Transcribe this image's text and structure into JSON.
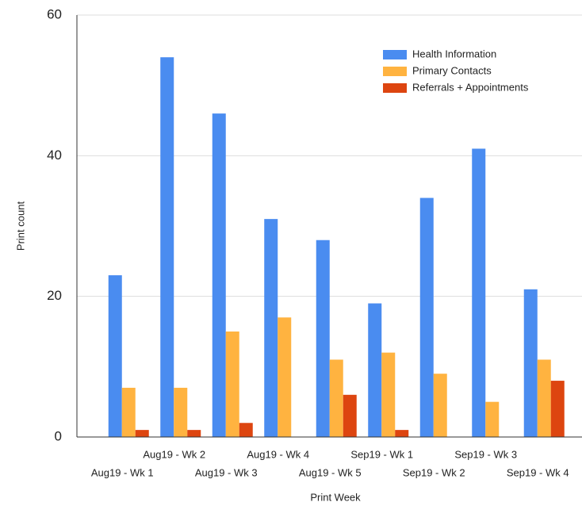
{
  "chart_data": {
    "type": "bar",
    "xlabel": "Print Week",
    "ylabel": "Print count",
    "categories": [
      "Aug19 - Wk 1",
      "Aug19 - Wk 2",
      "Aug19 - Wk 3",
      "Aug19 - Wk 4",
      "Aug19 - Wk 5",
      "Sep19 - Wk 1",
      "Sep19 - Wk 2",
      "Sep19 - Wk 3",
      "Sep19 - Wk 4"
    ],
    "series": [
      {
        "name": "Health Information",
        "color": "#4a8cf0",
        "values": [
          23,
          54,
          46,
          31,
          28,
          19,
          34,
          41,
          21
        ]
      },
      {
        "name": "Primary Contacts",
        "color": "#ffb340",
        "values": [
          7,
          7,
          15,
          17,
          11,
          12,
          9,
          5,
          11
        ]
      },
      {
        "name": "Referrals + Appointments",
        "color": "#dd4510",
        "values": [
          1,
          1,
          2,
          0,
          6,
          1,
          0,
          0,
          8
        ]
      }
    ],
    "ylim": [
      0,
      60
    ],
    "yticks": [
      0,
      20,
      40,
      60
    ],
    "grid": true,
    "legend": "top-right"
  }
}
